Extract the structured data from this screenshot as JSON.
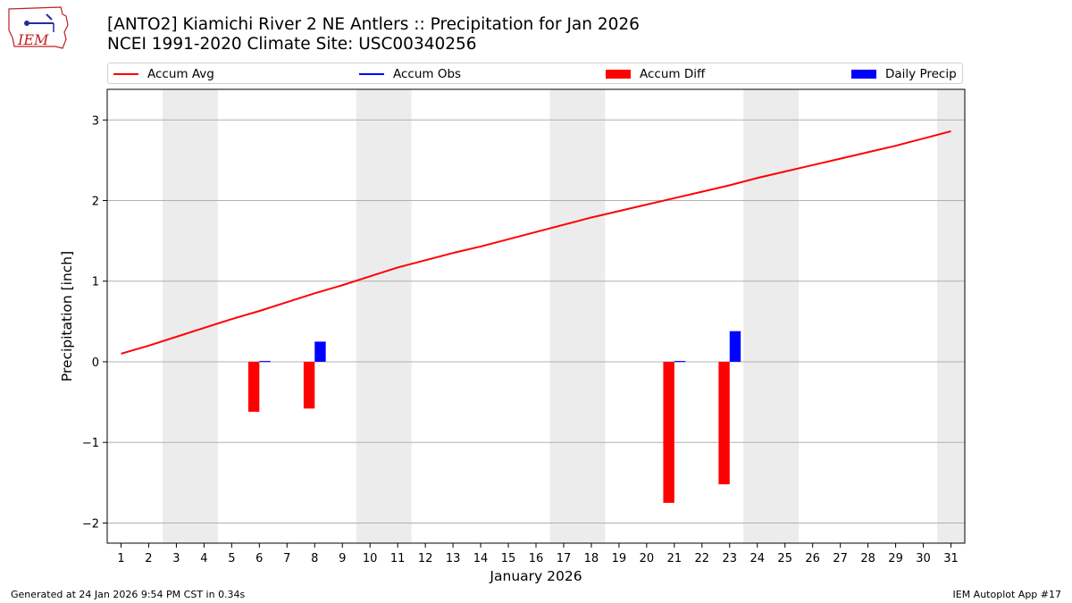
{
  "header": {
    "title_line1": "[ANTO2] Kiamichi River 2 NE Antlers :: Precipitation for Jan 2026",
    "title_line2": "NCEI 1991-2020 Climate Site: USC00340256",
    "logo_text": "IEM"
  },
  "legend": {
    "items": [
      {
        "label": "Accum Avg",
        "color": "#ff0000",
        "kind": "line"
      },
      {
        "label": "Accum Obs",
        "color": "#0000ff",
        "kind": "line"
      },
      {
        "label": "Accum Diff",
        "color": "#ff0000",
        "kind": "box"
      },
      {
        "label": "Daily Precip",
        "color": "#0000ff",
        "kind": "box"
      }
    ]
  },
  "chart_data": {
    "type": "bar",
    "xlabel": "January 2026",
    "ylabel": "Precipitation [inch]",
    "xlim": [
      0.5,
      31.5
    ],
    "ylim": [
      -2.25,
      3.38
    ],
    "yticks": [
      -2,
      -1,
      0,
      1,
      2,
      3
    ],
    "ytick_labels": [
      "−2",
      "−1",
      "0",
      "1",
      "2",
      "3"
    ],
    "grid": true,
    "weekend_shading": [
      [
        2.5,
        4.5
      ],
      [
        9.5,
        11.5
      ],
      [
        16.5,
        18.5
      ],
      [
        23.5,
        25.5
      ],
      [
        30.5,
        31.5
      ]
    ],
    "days": [
      1,
      2,
      3,
      4,
      5,
      6,
      7,
      8,
      9,
      10,
      11,
      12,
      13,
      14,
      15,
      16,
      17,
      18,
      19,
      20,
      21,
      22,
      23,
      24,
      25,
      26,
      27,
      28,
      29,
      30,
      31
    ],
    "series": [
      {
        "name": "Accum Avg",
        "kind": "line",
        "color": "#ff0000",
        "values": [
          0.1,
          0.2,
          0.31,
          0.42,
          0.53,
          0.63,
          0.74,
          0.85,
          0.95,
          1.06,
          1.17,
          1.26,
          1.35,
          1.43,
          1.52,
          1.61,
          1.7,
          1.79,
          1.87,
          1.95,
          2.03,
          2.11,
          2.19,
          2.28,
          2.36,
          2.44,
          2.52,
          2.6,
          2.68,
          2.77,
          2.86
        ]
      },
      {
        "name": "Accum Diff",
        "kind": "bar",
        "color": "#ff0000",
        "points": [
          {
            "day": 6,
            "value": -0.62
          },
          {
            "day": 8,
            "value": -0.58
          },
          {
            "day": 21,
            "value": -1.75
          },
          {
            "day": 23,
            "value": -1.52
          }
        ]
      },
      {
        "name": "Daily Precip",
        "kind": "bar",
        "color": "#0000ff",
        "points": [
          {
            "day": 6,
            "value": 0.01
          },
          {
            "day": 8,
            "value": 0.25
          },
          {
            "day": 21,
            "value": 0.01
          },
          {
            "day": 23,
            "value": 0.38
          }
        ]
      }
    ]
  },
  "footer": {
    "left": "Generated at 24 Jan 2026 9:54 PM CST in 0.34s",
    "right": "IEM Autoplot App #17"
  }
}
